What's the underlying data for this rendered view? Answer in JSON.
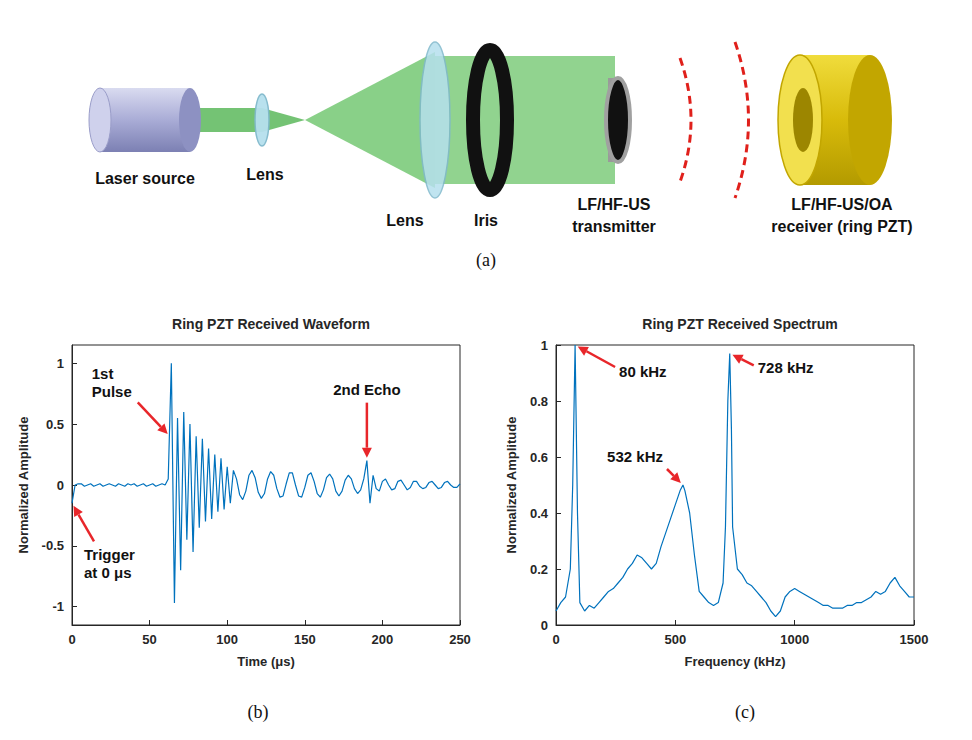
{
  "diagram": {
    "panel": "(a)",
    "components": [
      {
        "lines": [
          "Laser source"
        ]
      },
      {
        "lines": [
          "Lens"
        ]
      },
      {
        "lines": [
          "Lens"
        ]
      },
      {
        "lines": [
          "Iris"
        ]
      },
      {
        "lines": [
          "LF/HF-US",
          "transmitter"
        ]
      },
      {
        "lines": [
          "LF/HF-US/OA",
          "receiver (ring PZT)"
        ]
      }
    ]
  },
  "chart_data": [
    {
      "panel": "(b)",
      "type": "line",
      "title": "Ring PZT Received Waveform",
      "x_label": "Time (μs)",
      "y_label": "Normalized Amplitude",
      "x": [
        0,
        2,
        4,
        6,
        8,
        10,
        12,
        14,
        16,
        18,
        20,
        22,
        24,
        26,
        28,
        30,
        32,
        34,
        36,
        38,
        40,
        42,
        44,
        46,
        48,
        50,
        52,
        54,
        56,
        58,
        60,
        62,
        64,
        66,
        68,
        70,
        72,
        74,
        76,
        78,
        80,
        82,
        84,
        86,
        88,
        90,
        92,
        94,
        96,
        98,
        100,
        102,
        104,
        106,
        108,
        110,
        112,
        114,
        116,
        118,
        120,
        122,
        124,
        126,
        128,
        130,
        132,
        134,
        136,
        138,
        140,
        142,
        144,
        146,
        148,
        150,
        152,
        154,
        156,
        158,
        160,
        162,
        164,
        166,
        168,
        170,
        172,
        174,
        176,
        178,
        180,
        182,
        184,
        186,
        188,
        190,
        192,
        194,
        196,
        198,
        200,
        202,
        204,
        206,
        208,
        210,
        212,
        214,
        216,
        218,
        220,
        222,
        224,
        226,
        228,
        230,
        232,
        234,
        236,
        238,
        240,
        242,
        244,
        246,
        248,
        250
      ],
      "values": [
        -0.15,
        0.0,
        0.01,
        0.01,
        -0.01,
        0.0,
        0.01,
        -0.01,
        0.0,
        0.01,
        -0.01,
        0.0,
        0.01,
        0.0,
        -0.01,
        0.01,
        0.0,
        -0.01,
        0.01,
        0.0,
        0.01,
        -0.01,
        0.0,
        0.01,
        -0.01,
        0.0,
        0.01,
        -0.01,
        0.0,
        0.01,
        0.0,
        0.05,
        1.0,
        -0.97,
        0.55,
        -0.7,
        0.6,
        -0.45,
        0.5,
        -0.55,
        0.4,
        -0.35,
        0.38,
        -0.3,
        0.3,
        -0.28,
        0.25,
        -0.22,
        0.22,
        -0.2,
        0.15,
        -0.15,
        0.12,
        0.05,
        -0.08,
        -0.12,
        -0.05,
        0.08,
        0.12,
        0.06,
        -0.06,
        -0.11,
        -0.07,
        0.05,
        0.11,
        0.08,
        -0.03,
        -0.1,
        -0.09,
        0.01,
        0.1,
        0.1,
        0.0,
        -0.09,
        -0.1,
        -0.02,
        0.08,
        0.1,
        0.03,
        -0.07,
        -0.1,
        -0.04,
        0.06,
        0.09,
        0.05,
        -0.05,
        -0.09,
        -0.05,
        0.04,
        0.08,
        0.05,
        -0.03,
        -0.07,
        -0.04,
        0.05,
        0.2,
        -0.15,
        0.08,
        -0.03,
        -0.05,
        0.03,
        0.05,
        0.0,
        -0.04,
        -0.03,
        0.03,
        0.04,
        0.0,
        -0.04,
        -0.02,
        0.03,
        0.03,
        -0.01,
        -0.03,
        -0.02,
        0.02,
        0.03,
        0.0,
        -0.03,
        -0.02,
        0.02,
        0.03,
        0.0,
        -0.02,
        -0.02,
        0.01
      ],
      "color": "#0072bd",
      "xlim": [
        0,
        250
      ],
      "xticks": [
        0,
        50,
        100,
        150,
        200,
        250
      ],
      "ylim": [
        -1.15,
        1.15
      ],
      "yticks": [
        -1,
        -0.5,
        0,
        0.5,
        1
      ],
      "grid": false,
      "annotations": [
        {
          "text": "1st Pulse",
          "x": 63,
          "y": 0.4
        },
        {
          "text": "2nd Echo",
          "x": 190,
          "y": 0.2
        },
        {
          "text": "Trigger at 0 μs",
          "x": 0,
          "y": -0.15
        }
      ]
    },
    {
      "panel": "(c)",
      "type": "line",
      "title": "Ring PZT Received Spectrum",
      "x_label": "Frequency (kHz)",
      "y_label": "Normalized Amplitude",
      "x": [
        0,
        20,
        40,
        60,
        70,
        80,
        90,
        100,
        120,
        140,
        160,
        180,
        200,
        220,
        240,
        260,
        280,
        300,
        320,
        340,
        360,
        380,
        400,
        420,
        440,
        460,
        480,
        500,
        520,
        532,
        540,
        560,
        580,
        600,
        620,
        640,
        660,
        680,
        700,
        710,
        720,
        728,
        735,
        740,
        760,
        780,
        800,
        820,
        840,
        860,
        880,
        900,
        920,
        940,
        960,
        980,
        1000,
        1020,
        1040,
        1060,
        1080,
        1100,
        1120,
        1140,
        1160,
        1180,
        1200,
        1220,
        1240,
        1260,
        1280,
        1300,
        1320,
        1340,
        1360,
        1380,
        1400,
        1420,
        1440,
        1460,
        1480,
        1500
      ],
      "values": [
        0.05,
        0.08,
        0.1,
        0.2,
        0.5,
        1.0,
        0.4,
        0.08,
        0.05,
        0.07,
        0.06,
        0.08,
        0.1,
        0.12,
        0.13,
        0.15,
        0.17,
        0.2,
        0.22,
        0.25,
        0.24,
        0.22,
        0.2,
        0.22,
        0.28,
        0.33,
        0.38,
        0.43,
        0.48,
        0.5,
        0.48,
        0.4,
        0.25,
        0.12,
        0.1,
        0.08,
        0.07,
        0.08,
        0.15,
        0.35,
        0.8,
        0.97,
        0.7,
        0.35,
        0.2,
        0.18,
        0.15,
        0.14,
        0.12,
        0.1,
        0.08,
        0.05,
        0.03,
        0.05,
        0.1,
        0.12,
        0.13,
        0.12,
        0.11,
        0.1,
        0.09,
        0.08,
        0.07,
        0.07,
        0.06,
        0.06,
        0.06,
        0.07,
        0.07,
        0.08,
        0.08,
        0.09,
        0.1,
        0.12,
        0.11,
        0.12,
        0.15,
        0.17,
        0.14,
        0.12,
        0.1,
        0.1
      ],
      "color": "#0072bd",
      "xlim": [
        0,
        1500
      ],
      "xticks": [
        0,
        500,
        1000,
        1500
      ],
      "ylim": [
        0,
        1
      ],
      "yticks": [
        0,
        0.2,
        0.4,
        0.6,
        0.8,
        1
      ],
      "grid": false,
      "annotations": [
        {
          "text": "80 kHz",
          "x": 80,
          "y": 1.0
        },
        {
          "text": "532 kHz",
          "x": 532,
          "y": 0.5
        },
        {
          "text": "728 kHz",
          "x": 728,
          "y": 0.97
        }
      ]
    }
  ]
}
